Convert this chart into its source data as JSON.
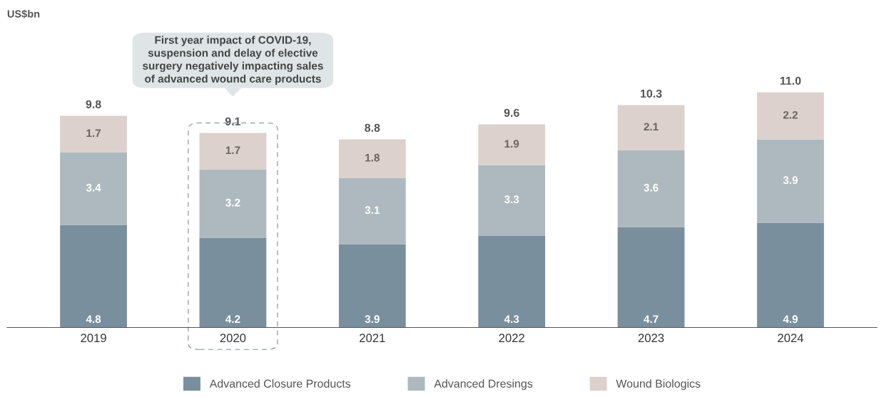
{
  "chart_data": {
    "type": "bar",
    "stacked": true,
    "categories": [
      "2019",
      "2020",
      "2021",
      "2022",
      "2023",
      "2024"
    ],
    "series": [
      {
        "name": "Advanced Closure Products",
        "color": "#7a8f9d",
        "values": [
          4.8,
          4.2,
          3.9,
          4.3,
          4.7,
          4.9
        ]
      },
      {
        "name": "Advanced Dresings",
        "color": "#adb9be",
        "values": [
          3.4,
          3.2,
          3.1,
          3.3,
          3.6,
          3.9
        ]
      },
      {
        "name": "Wound Biologics",
        "color": "#dcd1cc",
        "values": [
          1.7,
          1.7,
          1.8,
          1.9,
          2.1,
          2.2
        ]
      }
    ],
    "totals": [
      "9.8",
      "9.1",
      "8.8",
      "9.6",
      "10.3",
      "11.0"
    ],
    "data_labels": true,
    "legend": "bottom",
    "grid": false,
    "annotations": [
      "US$bn",
      "First year impact of COVID-19,\nsuspension and delay of elective\nsurgery negatively impacting sales\nof advanced wound care products"
    ]
  }
}
